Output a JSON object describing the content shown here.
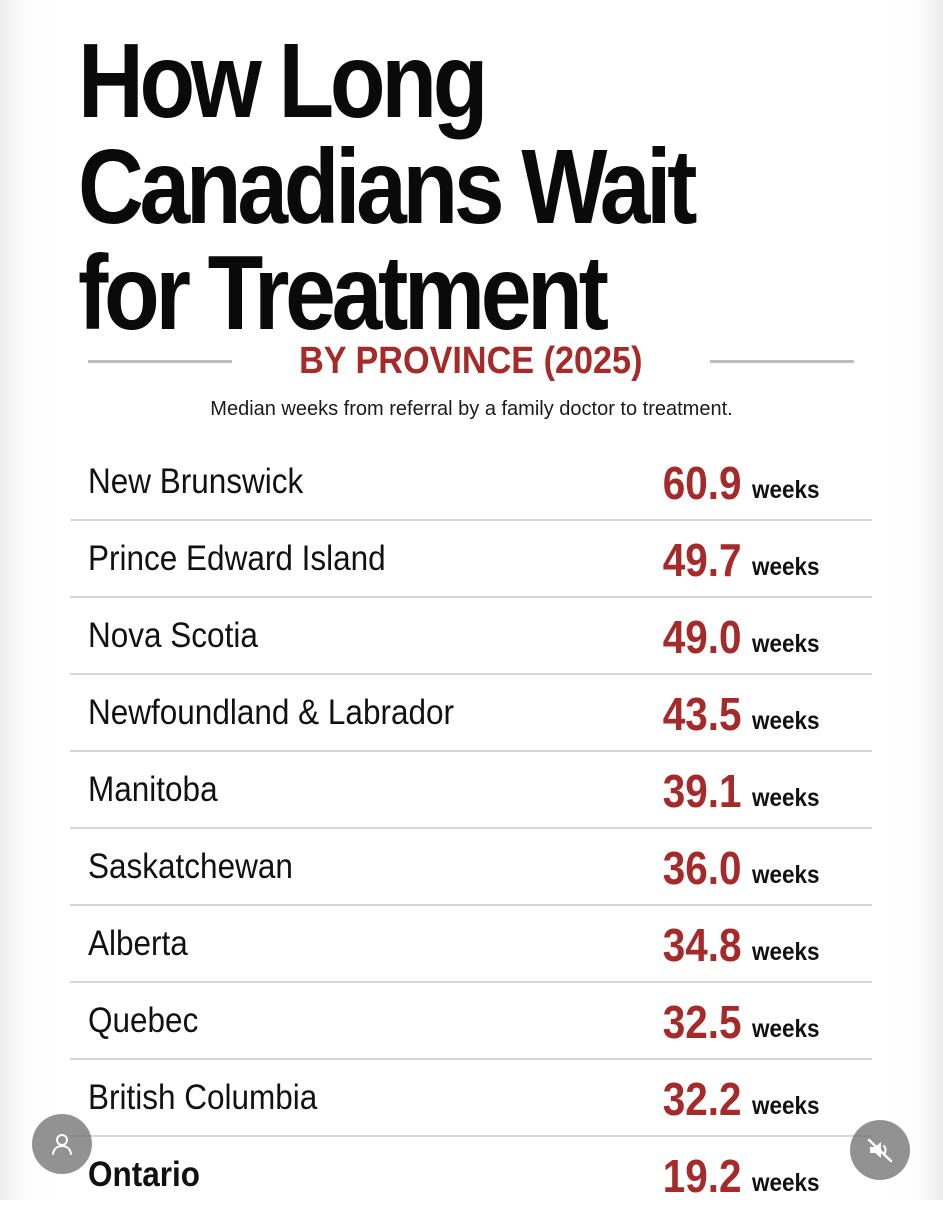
{
  "title_lines": [
    "How Long",
    "Canadians Wait",
    "for Treatment"
  ],
  "subtitle": "BY PROVINCE (2025)",
  "caption": "Median weeks from referral by a family doctor to treatment.",
  "unit_label": "weeks",
  "colors": {
    "accent": "#a52a2a",
    "text": "#111111",
    "divider": "#d6d6d6"
  },
  "icons": {
    "profile": "person-icon",
    "mute": "speaker-muted-icon"
  },
  "chart_data": {
    "type": "table",
    "title": "How Long Canadians Wait for Treatment",
    "subtitle": "BY PROVINCE (2025)",
    "categories": [
      "New Brunswick",
      "Prince Edward Island",
      "Nova Scotia",
      "Newfoundland & Labrador",
      "Manitoba",
      "Saskatchewan",
      "Alberta",
      "Quebec",
      "British Columbia",
      "Ontario"
    ],
    "values": [
      "60.9",
      "49.7",
      "49.0",
      "43.5",
      "39.1",
      "36.0",
      "34.8",
      "32.5",
      "32.2",
      "19.2"
    ]
  }
}
